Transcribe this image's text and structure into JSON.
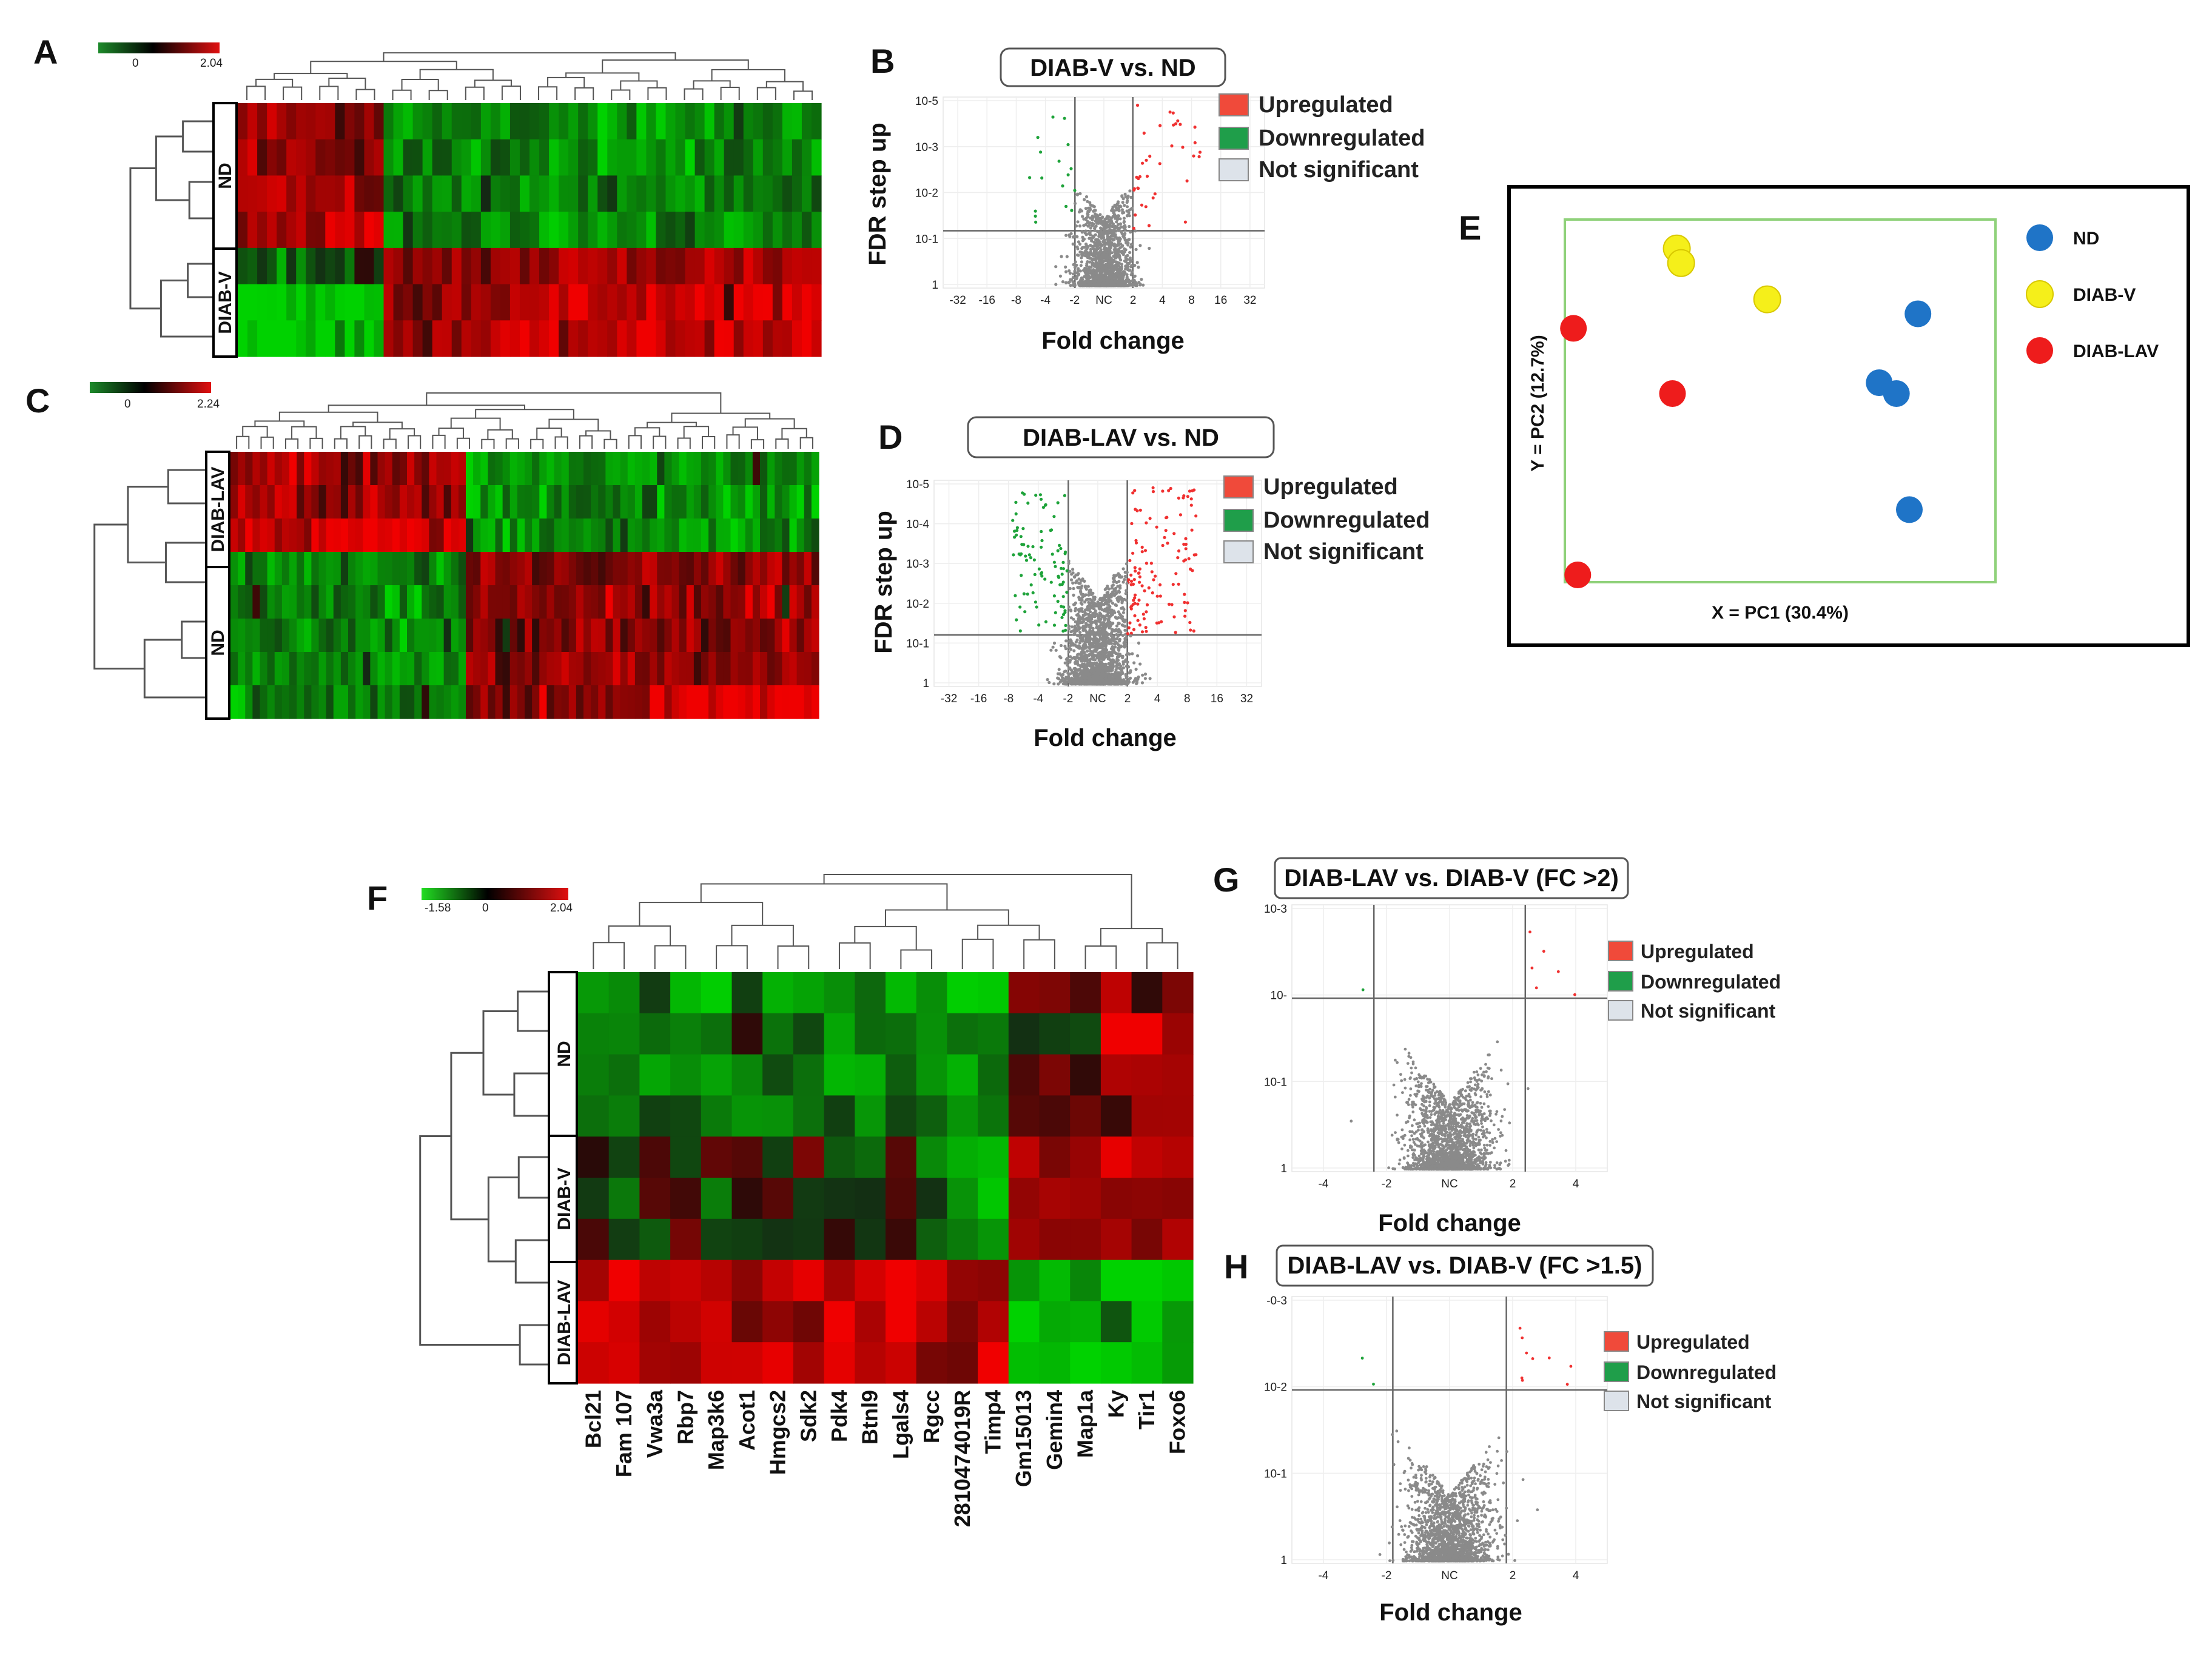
{
  "colors": {
    "up": "#f04a3a",
    "down": "#1f9e4a",
    "ns": "#dde3ea",
    "gray": "#808080",
    "nd": "#1f74c7",
    "diabv": "#f5ef1a",
    "diablav": "#ee1c1c"
  },
  "panel_labels": {
    "a": "A",
    "b": "B",
    "c": "C",
    "d": "D",
    "e": "E",
    "f": "F",
    "g": "G",
    "h": "H"
  },
  "legend_labels": {
    "up": "Upregulated",
    "down": "Downregulated",
    "ns": "Not significant"
  },
  "heatmaps": {
    "a": {
      "scale_min": "0",
      "scale_max": "2.04",
      "groups": [
        "ND",
        "DIAB-V"
      ]
    },
    "c": {
      "scale_min": "0",
      "scale_max": "2.24",
      "groups": [
        "DIAB-LAV",
        "ND"
      ]
    },
    "f": {
      "scale_min": "-1.58",
      "scale_mid": "0",
      "scale_max": "2.04",
      "groups": [
        "ND",
        "DIAB-V",
        "DIAB-LAV"
      ]
    }
  },
  "chart_data": [
    {
      "type": "scatter",
      "panel": "B",
      "title": "DIAB-V vs. ND",
      "xlabel": "Fold change",
      "ylabel": "FDR step up",
      "x_ticks": [
        "-32",
        "-16",
        "-8",
        "-4",
        "-2",
        "NC",
        "2",
        "4",
        "8",
        "16",
        "32"
      ],
      "y_ticks": [
        "10-5",
        "10-3",
        "10-2",
        "10-1",
        "1"
      ],
      "thresholds": {
        "fold_change": 2,
        "fdr": 0.05
      }
    },
    {
      "type": "scatter",
      "panel": "D",
      "title": "DIAB-LAV vs. ND",
      "xlabel": "Fold change",
      "ylabel": "FDR step up",
      "x_ticks": [
        "-32",
        "-16",
        "-8",
        "-4",
        "-2",
        "NC",
        "2",
        "4",
        "8",
        "16",
        "32"
      ],
      "y_ticks": [
        "10-5",
        "10-4",
        "10-3",
        "10-2",
        "10-1",
        "1"
      ],
      "thresholds": {
        "fold_change": 2,
        "fdr": 0.05
      }
    },
    {
      "type": "scatter",
      "panel": "E",
      "title": "",
      "xlabel": "X = PC1 (30.4%)",
      "ylabel": "Y = PC2 (12.7%)",
      "legend": [
        "ND",
        "DIAB-V",
        "DIAB-LAV"
      ],
      "series": [
        {
          "name": "ND",
          "points": [
            [
              0.82,
              0.74
            ],
            [
              0.73,
              0.55
            ],
            [
              0.77,
              0.52
            ],
            [
              0.8,
              0.2
            ]
          ]
        },
        {
          "name": "DIAB-V",
          "points": [
            [
              0.26,
              0.92
            ],
            [
              0.27,
              0.88
            ],
            [
              0.47,
              0.78
            ]
          ]
        },
        {
          "name": "DIAB-LAV",
          "points": [
            [
              0.02,
              0.7
            ],
            [
              0.25,
              0.52
            ],
            [
              0.03,
              0.02
            ]
          ]
        }
      ]
    },
    {
      "type": "scatter",
      "panel": "G",
      "title": "DIAB-LAV vs. DIAB-V (FC >2)",
      "xlabel": "Fold change",
      "ylabel": "",
      "x_ticks": [
        "-4",
        "-2",
        "NC",
        "2",
        "4"
      ],
      "y_ticks": [
        "10-3",
        "10-",
        "10-1",
        "1"
      ],
      "thresholds": {
        "fold_change": 2,
        "fdr": 0.05
      }
    },
    {
      "type": "scatter",
      "panel": "H",
      "title": "DIAB-LAV vs. DIAB-V (FC >1.5)",
      "xlabel": "Fold change",
      "ylabel": "",
      "x_ticks": [
        "-4",
        "-2",
        "NC",
        "2",
        "4"
      ],
      "y_ticks": [
        "-0-3",
        "10-2",
        "10-1",
        "1"
      ],
      "thresholds": {
        "fold_change": 1.5,
        "fdr": 0.05
      }
    },
    {
      "type": "heatmap",
      "panel": "F",
      "genes": [
        "Bcl21",
        "Fam 107",
        "Vwa3a",
        "Rbp7",
        "Map3k6",
        "Acot1",
        "Hmgcs2",
        "Sdk2",
        "Pdk4",
        "Btnl9",
        "Lgals4",
        "Rgcc",
        "2810474019R",
        "Timp4",
        "Gm15013",
        "Gemin4",
        "Map1a",
        "Ky",
        "Tir1",
        "Foxo6"
      ],
      "row_groups": [
        "ND",
        "ND",
        "ND",
        "ND",
        "DIAB-V",
        "DIAB-V",
        "DIAB-V",
        "DIAB-LAV",
        "DIAB-LAV",
        "DIAB-LAV"
      ],
      "scale": [
        -1.58,
        0,
        2.04
      ]
    }
  ]
}
